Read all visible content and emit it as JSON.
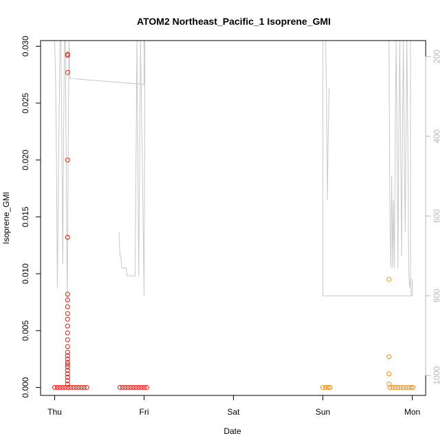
{
  "chart_data": {
    "type": "scatter",
    "title": "ATOM2 Northeast_Pacific_1 Isoprene_GMI",
    "xlabel": "Date",
    "ylabel": "Isoprene_GMI",
    "x_ticks": [
      "Thu",
      "Fri",
      "Sat",
      "Sun",
      "Mon"
    ],
    "xlim_days": [
      -0.2,
      4.15
    ],
    "ylim": [
      -0.0007,
      0.0305
    ],
    "y_ticks": [
      0.0,
      0.005,
      0.01,
      0.015,
      0.02,
      0.025,
      0.03
    ],
    "y_tick_labels": [
      "0.000",
      "0.005",
      "0.010",
      "0.015",
      "0.020",
      "0.025",
      "0.030"
    ],
    "y2_ticks": [
      200,
      400,
      600,
      800,
      1000
    ],
    "y2_reversed": true,
    "y2lim": [
      1050,
      160
    ],
    "grid": false,
    "series": [
      {
        "color": "#e8150c",
        "marker": "open-circle",
        "points": [
          [
            0.0,
            0.0
          ],
          [
            0.03,
            0.0
          ],
          [
            0.06,
            0.0
          ],
          [
            0.09,
            0.0
          ],
          [
            0.12,
            0.0
          ],
          [
            0.15,
            0.0
          ],
          [
            0.18,
            0.0
          ],
          [
            0.21,
            0.0
          ],
          [
            0.24,
            0.0
          ],
          [
            0.27,
            0.0
          ],
          [
            0.3,
            0.0
          ],
          [
            0.33,
            0.0
          ],
          [
            0.36,
            0.0
          ],
          [
            0.145,
            0.0293
          ],
          [
            0.145,
            0.0292
          ],
          [
            0.145,
            0.0277
          ],
          [
            0.145,
            0.02
          ],
          [
            0.145,
            0.0132
          ],
          [
            0.145,
            0.0082
          ],
          [
            0.145,
            0.0077
          ],
          [
            0.145,
            0.0071
          ],
          [
            0.145,
            0.0065
          ],
          [
            0.145,
            0.006
          ],
          [
            0.145,
            0.0054
          ],
          [
            0.145,
            0.0048
          ],
          [
            0.145,
            0.0042
          ],
          [
            0.145,
            0.0036
          ],
          [
            0.145,
            0.0031
          ],
          [
            0.145,
            0.0028
          ],
          [
            0.145,
            0.0025
          ],
          [
            0.145,
            0.0022
          ],
          [
            0.145,
            0.002
          ],
          [
            0.145,
            0.0018
          ],
          [
            0.145,
            0.0015
          ],
          [
            0.145,
            0.0012
          ],
          [
            0.145,
            0.0009
          ],
          [
            0.145,
            0.0006
          ],
          [
            0.145,
            0.0003
          ],
          [
            0.73,
            0.0
          ],
          [
            0.76,
            0.0
          ],
          [
            0.79,
            0.0
          ],
          [
            0.82,
            0.0
          ],
          [
            0.85,
            0.0
          ],
          [
            0.88,
            0.0
          ],
          [
            0.91,
            0.0
          ],
          [
            0.94,
            0.0
          ],
          [
            0.97,
            0.0
          ],
          [
            1.0,
            0.0
          ],
          [
            1.03,
            0.0
          ]
        ]
      },
      {
        "color": "#f28e1c",
        "marker": "open-circle",
        "points": [
          [
            3.0,
            0.0
          ],
          [
            3.03,
            0.0
          ],
          [
            3.06,
            0.0
          ],
          [
            3.08,
            0.0
          ],
          [
            3.75,
            0.0
          ],
          [
            3.78,
            0.0
          ],
          [
            3.81,
            0.0
          ],
          [
            3.84,
            0.0
          ],
          [
            3.87,
            0.0
          ],
          [
            3.9,
            0.0
          ],
          [
            3.93,
            0.0
          ],
          [
            3.96,
            0.0
          ],
          [
            3.99,
            0.0
          ],
          [
            4.01,
            0.0
          ],
          [
            3.74,
            0.0095
          ],
          [
            3.74,
            0.0027
          ],
          [
            3.74,
            0.0012
          ],
          [
            3.74,
            0.0003
          ]
        ]
      }
    ],
    "altitude_line": {
      "color": "#c8c8c8",
      "axis": "secondary",
      "segments": [
        [
          [
            0.0,
            160
          ],
          [
            0.01,
            255
          ],
          [
            0.02,
            460
          ],
          [
            0.03,
            780
          ],
          [
            0.045,
            460
          ],
          [
            0.06,
            160
          ],
          [
            0.07,
            160
          ],
          [
            0.08,
            400
          ],
          [
            0.09,
            720
          ],
          [
            0.1,
            400
          ],
          [
            0.11,
            160
          ],
          [
            0.12,
            160
          ],
          [
            0.13,
            500
          ],
          [
            0.14,
            820
          ],
          [
            0.15,
            500
          ],
          [
            0.16,
            160
          ],
          [
            0.17,
            255
          ],
          [
            1.0,
            270
          ],
          [
            1.0,
            160
          ]
        ],
        [
          [
            0.72,
            640
          ],
          [
            0.73,
            700
          ],
          [
            0.74,
            700
          ],
          [
            0.75,
            730
          ],
          [
            0.8,
            730
          ],
          [
            0.81,
            750
          ],
          [
            0.9,
            750
          ],
          [
            0.91,
            460
          ],
          [
            0.92,
            160
          ],
          [
            0.93,
            460
          ],
          [
            0.94,
            750
          ],
          [
            0.95,
            460
          ],
          [
            0.96,
            160
          ],
          [
            0.98,
            460
          ],
          [
            1.0,
            800
          ],
          [
            1.01,
            160
          ]
        ],
        [
          [
            3.03,
            160
          ],
          [
            3.04,
            280
          ],
          [
            3.05,
            560
          ],
          [
            3.06,
            400
          ],
          [
            3.07,
            280
          ]
        ],
        [
          [
            3.0,
            160
          ],
          [
            3.0,
            800
          ],
          [
            4.0,
            800
          ],
          [
            4.0,
            760
          ],
          [
            3.98,
            760
          ],
          [
            3.98,
            160
          ]
        ],
        [
          [
            3.74,
            160
          ],
          [
            3.75,
            600
          ],
          [
            3.76,
            730
          ],
          [
            3.77,
            500
          ],
          [
            3.78,
            730
          ],
          [
            3.79,
            560
          ],
          [
            3.8,
            730
          ],
          [
            3.81,
            400
          ],
          [
            3.82,
            160
          ],
          [
            3.83,
            400
          ],
          [
            3.84,
            730
          ],
          [
            3.85,
            400
          ],
          [
            3.86,
            160
          ],
          [
            3.87,
            400
          ],
          [
            3.88,
            700
          ],
          [
            3.89,
            400
          ],
          [
            3.9,
            160
          ],
          [
            3.91,
            400
          ],
          [
            3.92,
            640
          ],
          [
            3.93,
            400
          ],
          [
            3.94,
            160
          ],
          [
            3.95,
            400
          ],
          [
            3.96,
            730
          ],
          [
            3.97,
            780
          ],
          [
            3.98,
            760
          ],
          [
            3.99,
            800
          ]
        ]
      ]
    }
  }
}
